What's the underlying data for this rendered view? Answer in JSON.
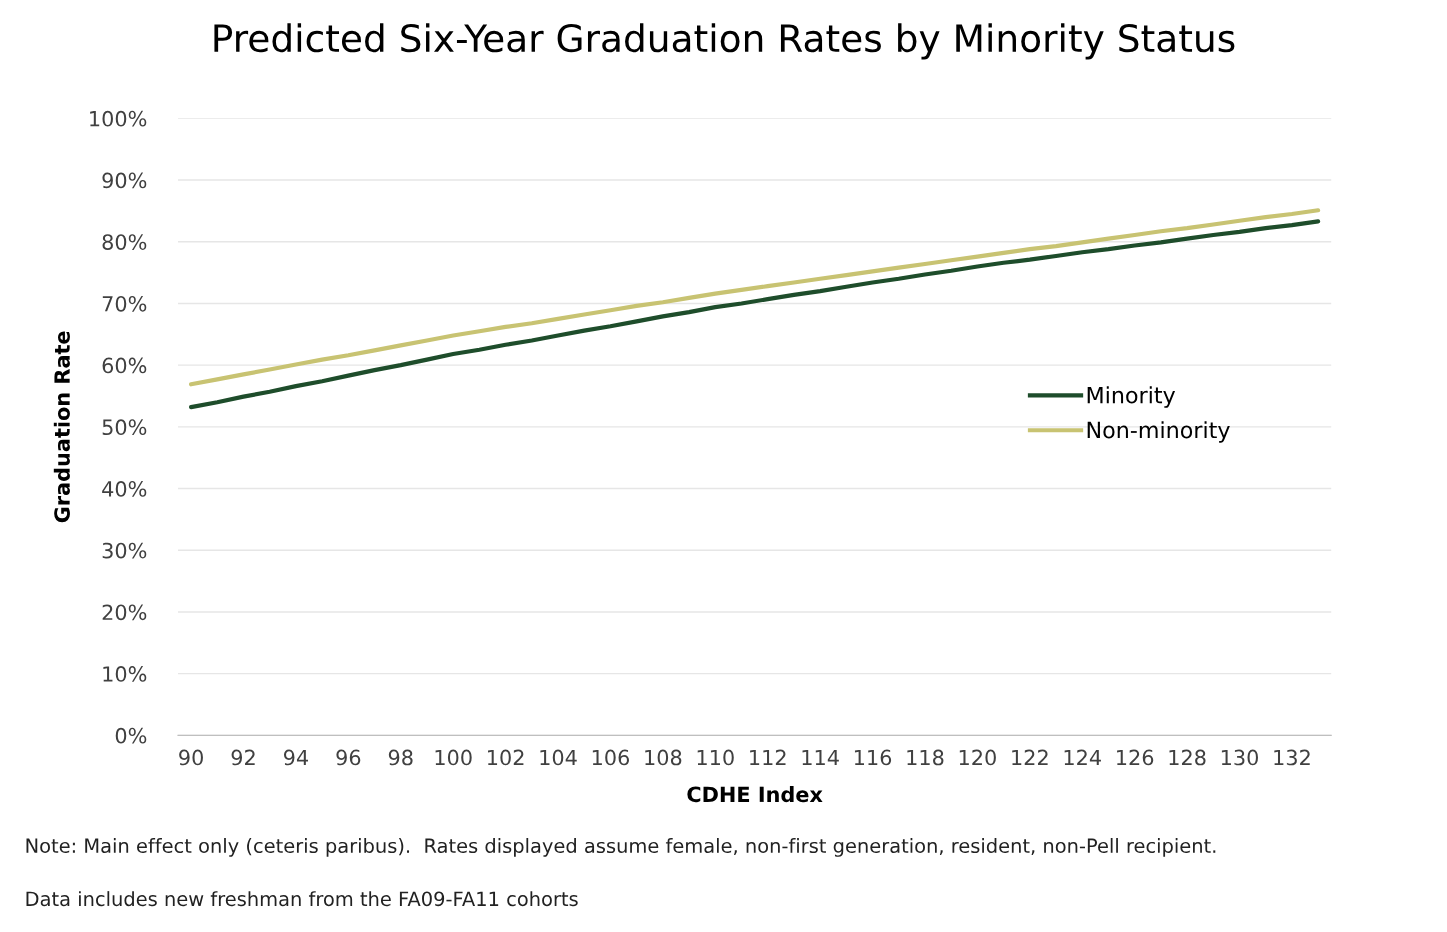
{
  "chart_data": {
    "type": "line",
    "title": "Predicted Six-Year Graduation Rates by Minority Status",
    "xlabel": "CDHE Index",
    "ylabel": "Graduation Rate",
    "categories": [
      "90",
      null,
      "92",
      null,
      "94",
      null,
      "96",
      null,
      "98",
      null,
      "100",
      null,
      "102",
      null,
      "104",
      null,
      "106",
      null,
      "108",
      null,
      "110",
      null,
      "112",
      null,
      "114",
      null,
      "116",
      null,
      "118",
      null,
      "120",
      null,
      "122",
      null,
      "124",
      null,
      "126",
      null,
      "128",
      null,
      "130",
      null,
      "132",
      null
    ],
    "series": [
      {
        "name": "Minority",
        "color": "#1e4d2b",
        "values": [
          53.2,
          54.0,
          54.9,
          55.7,
          56.6,
          57.4,
          58.3,
          59.2,
          60.0,
          60.9,
          61.8,
          62.5,
          63.3,
          64.0,
          64.8,
          65.6,
          66.3,
          67.1,
          67.9,
          68.6,
          69.4,
          70.0,
          70.7,
          71.4,
          72.0,
          72.7,
          73.4,
          74.0,
          74.7,
          75.3,
          76.0,
          76.6,
          77.1,
          77.7,
          78.3,
          78.8,
          79.4,
          79.9,
          80.5,
          81.1,
          81.6,
          82.2,
          82.7,
          83.3
        ]
      },
      {
        "name": "Non-minority",
        "color": "#c8c372",
        "values": [
          56.9,
          57.7,
          58.5,
          59.3,
          60.1,
          60.9,
          61.6,
          62.4,
          63.2,
          64.0,
          64.8,
          65.5,
          66.2,
          66.8,
          67.5,
          68.2,
          68.9,
          69.6,
          70.2,
          70.9,
          71.6,
          72.2,
          72.8,
          73.4,
          74.0,
          74.6,
          75.2,
          75.8,
          76.4,
          77.0,
          77.6,
          78.2,
          78.8,
          79.3,
          79.9,
          80.5,
          81.1,
          81.7,
          82.2,
          82.8,
          83.4,
          84.0,
          84.5,
          85.1
        ]
      }
    ],
    "ylim": [
      0,
      100
    ],
    "yticks": [
      {
        "value": 0,
        "label": "0%"
      },
      {
        "value": 10,
        "label": "10%"
      },
      {
        "value": 20,
        "label": "20%"
      },
      {
        "value": 30,
        "label": "30%"
      },
      {
        "value": 40,
        "label": "40%"
      },
      {
        "value": 50,
        "label": "50%"
      },
      {
        "value": 60,
        "label": "60%"
      },
      {
        "value": 70,
        "label": "70%"
      },
      {
        "value": 80,
        "label": "80%"
      },
      {
        "value": 90,
        "label": "90%"
      },
      {
        "value": 100,
        "label": "100%"
      }
    ],
    "grid": "y",
    "legend": "right",
    "marker": "none",
    "line_style": "solid",
    "annotations": [
      "Note: Main effect only (ceteris paribus).  Rates displayed assume female, non-first generation, resident, non-Pell recipient.",
      "Data includes new freshman from the FA09-FA11 cohorts"
    ]
  }
}
